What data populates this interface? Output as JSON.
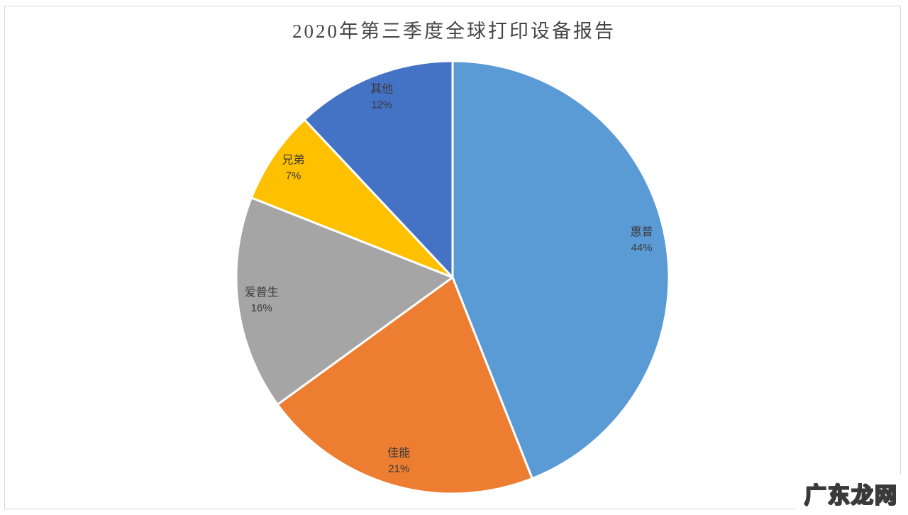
{
  "page": {
    "background_color": "#ffffff",
    "border_color": "#d8d8d8"
  },
  "chart_data": {
    "type": "pie",
    "title": "2020年第三季度全球打印设备报告",
    "categories": [
      "惠普",
      "佳能",
      "爱普生",
      "兄弟",
      "其他"
    ],
    "values": [
      44,
      21,
      16,
      7,
      12
    ],
    "unit": "%",
    "start_angle_deg": 0,
    "direction": "clockwise",
    "legend": "none",
    "labels_position": "inside",
    "slices": [
      {
        "label": "惠普",
        "value_pct": 44,
        "display_pct": "44%",
        "color": "#5B9BD5"
      },
      {
        "label": "佳能",
        "value_pct": 21,
        "display_pct": "21%",
        "color": "#ED7D31"
      },
      {
        "label": "爱普生",
        "value_pct": 16,
        "display_pct": "16%",
        "color": "#A5A5A5"
      },
      {
        "label": "兄弟",
        "value_pct": 7,
        "display_pct": "7%",
        "color": "#FFC000"
      },
      {
        "label": "其他",
        "value_pct": 12,
        "display_pct": "12%",
        "color": "#4472C4"
      }
    ],
    "slice_border_color": "#ffffff",
    "label_text_color": "#3a3a3a"
  },
  "watermark": {
    "text": "广东龙网"
  }
}
